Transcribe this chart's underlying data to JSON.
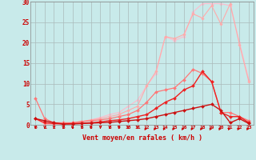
{
  "x": [
    0,
    1,
    2,
    3,
    4,
    5,
    6,
    7,
    8,
    9,
    10,
    11,
    12,
    13,
    14,
    15,
    16,
    17,
    18,
    19,
    20,
    21,
    22,
    23
  ],
  "line_dark1": [
    1.5,
    1.0,
    0.5,
    0.2,
    0.2,
    0.3,
    0.4,
    0.5,
    0.6,
    0.8,
    1.0,
    1.2,
    1.5,
    2.0,
    2.5,
    3.0,
    3.5,
    4.0,
    4.5,
    5.0,
    3.5,
    0.5,
    1.5,
    0.3
  ],
  "line_dark2": [
    1.5,
    0.5,
    0.3,
    0.2,
    0.3,
    0.4,
    0.5,
    0.7,
    1.0,
    1.2,
    1.5,
    2.0,
    2.5,
    4.0,
    5.5,
    6.5,
    8.5,
    9.5,
    13.0,
    10.5,
    3.0,
    2.0,
    2.0,
    0.5
  ],
  "line_med1": [
    6.5,
    1.5,
    0.5,
    0.5,
    0.5,
    0.8,
    1.0,
    1.2,
    1.5,
    2.0,
    2.5,
    3.5,
    5.5,
    8.0,
    8.5,
    9.0,
    11.0,
    13.5,
    12.5,
    10.5,
    3.0,
    3.0,
    2.0,
    1.0
  ],
  "line_light1": [
    1.5,
    0.2,
    0.2,
    0.3,
    0.5,
    0.8,
    1.2,
    1.5,
    2.0,
    2.5,
    3.5,
    4.5,
    9.5,
    13.0,
    21.5,
    21.0,
    22.0,
    27.0,
    26.0,
    29.0,
    24.5,
    29.5,
    19.5,
    10.5
  ],
  "line_light2": [
    1.5,
    0.2,
    0.2,
    0.3,
    0.5,
    0.8,
    1.2,
    1.8,
    2.5,
    3.0,
    4.5,
    6.0,
    9.5,
    12.5,
    21.5,
    20.5,
    21.5,
    27.5,
    29.5,
    29.5,
    29.5,
    29.0,
    20.0,
    11.0
  ],
  "bg_color": "#c8eaea",
  "grid_color": "#aababa",
  "ylim": [
    0,
    30
  ],
  "xlim": [
    -0.5,
    23.5
  ],
  "yticks": [
    0,
    5,
    10,
    15,
    20,
    25,
    30
  ],
  "xlabel": "Vent moyen/en rafales ( km/h )"
}
